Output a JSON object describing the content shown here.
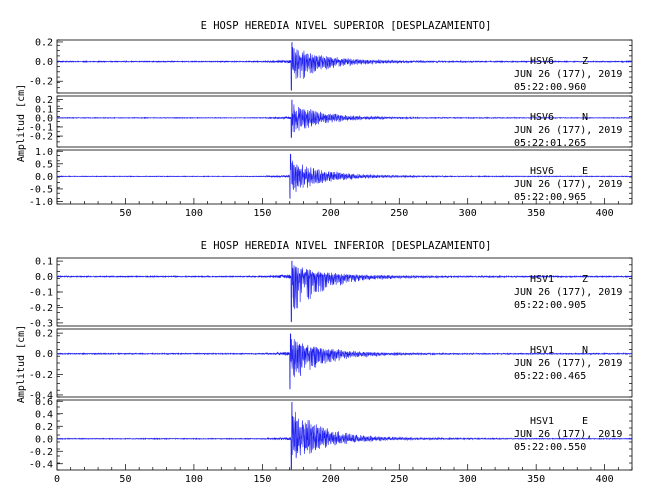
{
  "chart_data": [
    {
      "type": "line",
      "title": "E HOSP HEREDIA NIVEL SUPERIOR [DESPLAZAMIENTO]",
      "ylabel": "Amplitud [cm]",
      "xlim": [
        0,
        420
      ],
      "x_ticks": [
        "50",
        "100",
        "150",
        "200",
        "250",
        "300",
        "350",
        "400"
      ],
      "traces": [
        {
          "id": "super-z",
          "station": "HSV6",
          "component": "Z",
          "date": "JUN 26 (177), 2019",
          "time": "05:22:00.960",
          "ylim": [
            -0.32,
            0.22
          ],
          "y_ticks": [
            "0.2",
            "0.0",
            "-0.2"
          ],
          "onset": 171,
          "peak_pos": 0.2,
          "peak_neg": -0.3,
          "noise": 0.004,
          "seed": 11
        },
        {
          "id": "super-n",
          "station": "HSV6",
          "component": "N",
          "date": "JUN 26 (177), 2019",
          "time": "05:22:01.265",
          "ylim": [
            -0.32,
            0.24
          ],
          "y_ticks": [
            "0.2",
            "0.1",
            "0.0",
            "-0.1",
            "-0.2"
          ],
          "onset": 171,
          "peak_pos": 0.2,
          "peak_neg": -0.22,
          "noise": 0.003,
          "seed": 23
        },
        {
          "id": "super-e",
          "station": "HSV6",
          "component": "E",
          "date": "JUN 26 (177), 2019",
          "time": "05:22:00.965",
          "ylim": [
            -1.1,
            1.05
          ],
          "y_ticks": [
            "1.0",
            "0.5",
            "0.0",
            "-0.5",
            "-1.0"
          ],
          "onset": 170,
          "peak_pos": 0.9,
          "peak_neg": -0.9,
          "noise": 0.01,
          "seed": 37
        }
      ]
    },
    {
      "type": "line",
      "title": "E HOSP HEREDIA NIVEL INFERIOR [DESPLAZAMIENTO]",
      "ylabel": "Amplitud [cm]",
      "xlim": [
        0,
        420
      ],
      "x_ticks": [
        "0",
        "50",
        "100",
        "150",
        "200",
        "250",
        "300",
        "350",
        "400"
      ],
      "traces": [
        {
          "id": "infer-z",
          "station": "HSV1",
          "component": "Z",
          "date": "JUN 26 (177), 2019",
          "time": "05:22:00.905",
          "ylim": [
            -0.32,
            0.12
          ],
          "y_ticks": [
            "0.1",
            "0.0",
            "-0.1",
            "-0.2",
            "-0.3"
          ],
          "onset": 171,
          "peak_pos": 0.1,
          "peak_neg": -0.3,
          "noise": 0.003,
          "seed": 41
        },
        {
          "id": "infer-n",
          "station": "HSV1",
          "component": "N",
          "date": "JUN 26 (177), 2019",
          "time": "05:22:00.465",
          "ylim": [
            -0.42,
            0.24
          ],
          "y_ticks": [
            "0.2",
            "0.0",
            "-0.2",
            "-0.4"
          ],
          "onset": 170,
          "peak_pos": 0.2,
          "peak_neg": -0.35,
          "noise": 0.004,
          "seed": 53
        },
        {
          "id": "infer-e",
          "station": "HSV1",
          "component": "E",
          "date": "JUN 26 (177), 2019",
          "time": "05:22:00.550",
          "ylim": [
            -0.5,
            0.62
          ],
          "y_ticks": [
            "0.6",
            "0.4",
            "0.2",
            "0.0",
            "-0.2",
            "-0.4"
          ],
          "onset": 171,
          "peak_pos": 0.6,
          "peak_neg": -0.5,
          "noise": 0.005,
          "seed": 67
        }
      ]
    }
  ],
  "colors": {
    "trace": "#1c1cf0",
    "axis": "#000000"
  }
}
